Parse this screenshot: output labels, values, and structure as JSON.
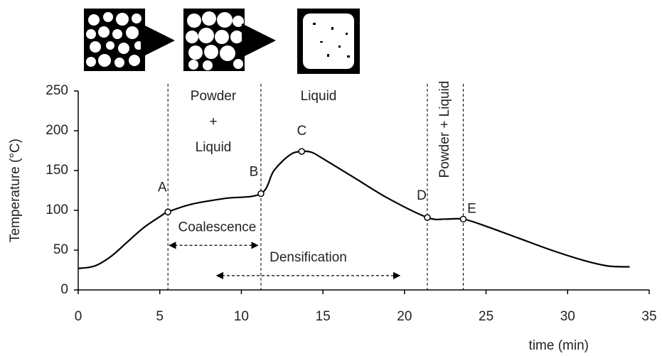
{
  "chart_data": {
    "type": "line",
    "y_label": "Temperature (°C)",
    "x_label": "time (min)",
    "xlim": [
      0,
      35
    ],
    "xticks": [
      0,
      5,
      10,
      15,
      20,
      25,
      30,
      35
    ],
    "ylim": [
      0,
      250
    ],
    "yticks": [
      0,
      50,
      100,
      150,
      200,
      250
    ],
    "x": [
      0,
      1,
      2,
      3,
      4,
      5,
      5.5,
      7,
      9,
      11.2,
      12,
      13,
      13.7,
      14.3,
      15,
      17,
      19,
      21.4,
      22.5,
      23.6,
      25,
      27,
      29,
      31,
      32.5,
      33.8
    ],
    "series": [
      {
        "name": "Temperature",
        "color": "#000000",
        "values": [
          27,
          30,
          42,
          60,
          78,
          92,
          98,
          108,
          115,
          121,
          150,
          170,
          174,
          173,
          165,
          140,
          115,
          91,
          89,
          89,
          80,
          65,
          50,
          37,
          30,
          29
        ]
      }
    ],
    "points": [
      {
        "label": "A",
        "x": 5.5,
        "y": 98
      },
      {
        "label": "B",
        "x": 11.2,
        "y": 121
      },
      {
        "label": "C",
        "x": 13.7,
        "y": 174
      },
      {
        "label": "D",
        "x": 21.4,
        "y": 91
      },
      {
        "label": "E",
        "x": 23.6,
        "y": 89
      }
    ],
    "regions": [
      "Powder",
      "+",
      "Liquid",
      "Liquid",
      "Powder + Liquid"
    ],
    "arrows": [
      {
        "label": "Coalescence",
        "x": [
          5.6,
          11.0
        ],
        "y": 56
      },
      {
        "label": "Densification",
        "x": [
          8.5,
          19.7
        ],
        "y": 18
      }
    ]
  }
}
